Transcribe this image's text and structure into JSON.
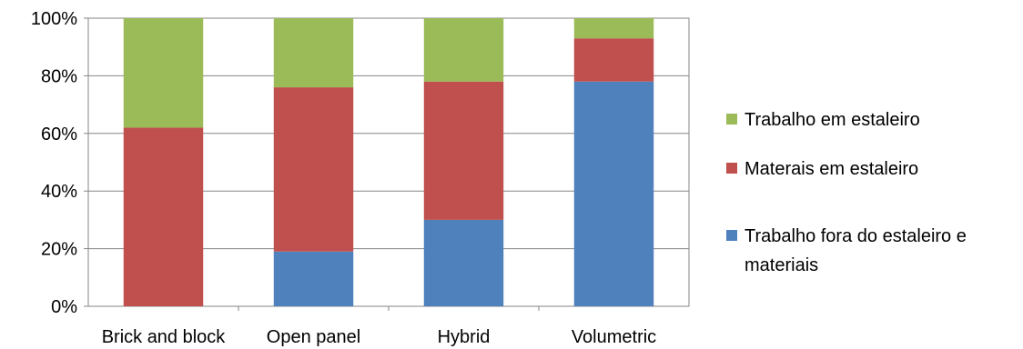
{
  "chart_data": {
    "type": "bar",
    "stacked": true,
    "categories": [
      "Brick and block",
      "Open panel",
      "Hybrid",
      "Volumetric"
    ],
    "series": [
      {
        "name": "Trabalho fora do estaleiro e materiais",
        "color": "#4f81bd",
        "values": [
          0,
          19,
          30,
          78
        ]
      },
      {
        "name": "Materais em estaleiro",
        "color": "#c0504d",
        "values": [
          62,
          57,
          48,
          15
        ]
      },
      {
        "name": "Trabalho em estaleiro",
        "color": "#9bbb59",
        "values": [
          38,
          24,
          22,
          7
        ]
      }
    ],
    "ylim": [
      0,
      100
    ],
    "yticks": [
      "0%",
      "20%",
      "40%",
      "60%",
      "80%",
      "100%"
    ],
    "grid": true,
    "legend_position": "right",
    "legend_order": [
      2,
      1,
      0
    ]
  }
}
